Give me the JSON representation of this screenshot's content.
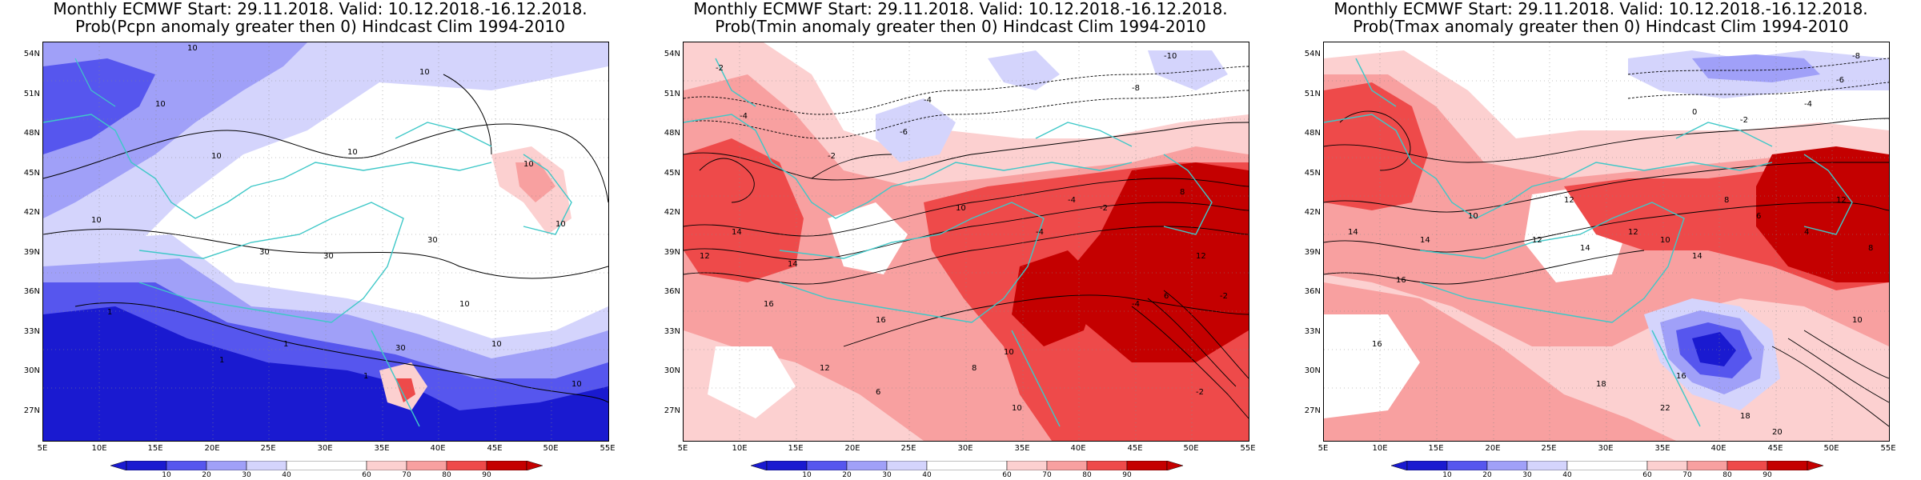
{
  "colors": {
    "blue_dark": "#1a1ad0",
    "blue_mid": "#5656ee",
    "blue_light": "#a0a0f8",
    "blue_pale": "#d4d4fc",
    "red_pale": "#fcd0d0",
    "red_light": "#f8a0a0",
    "red_mid": "#ee4a4a",
    "red_dark": "#c40000",
    "coast": "#3fc8c8",
    "contour": "#000000"
  },
  "lat_labels": [
    "54N",
    "51N",
    "48N",
    "45N",
    "42N",
    "39N",
    "36N",
    "33N",
    "30N",
    "27N"
  ],
  "lon_labels": [
    "5E",
    "10E",
    "15E",
    "20E",
    "25E",
    "30E",
    "35E",
    "40E",
    "45E",
    "50E",
    "55E"
  ],
  "colorbar_labels": [
    "10",
    "20",
    "30",
    "40",
    "60",
    "70",
    "80",
    "90"
  ],
  "panels": [
    {
      "id": "pcpn",
      "title_line1": "Monthly ECMWF Start: 29.11.2018. Valid: 10.12.2018.-16.12.2018.",
      "title_line2": "Prob(Pcpn anomaly greater then 0) Hindcast Clim 1994-2010",
      "contour_labels": [
        "10",
        "10",
        "10",
        "10",
        "10",
        "30",
        "30",
        "30",
        "10",
        "10",
        "1",
        "1",
        "10",
        "10",
        "1",
        "1",
        "30",
        "10",
        "10"
      ]
    },
    {
      "id": "tmin",
      "title_line1": "Monthly ECMWF Start: 29.11.2018. Valid: 10.12.2018.-16.12.2018.",
      "title_line2": "Prob(Tmin anomaly greater then 0) Hindcast Clim 1994-2010",
      "contour_labels": [
        "-2",
        "-10",
        "-8",
        "-4",
        "-2",
        "-4",
        "-6",
        "14",
        "12",
        "14",
        "16",
        "16",
        "10",
        "8",
        "10",
        "12",
        "-4",
        "-2",
        "-4",
        "6",
        "8",
        "12",
        "-2",
        "-4",
        "10",
        "6",
        "-2"
      ]
    },
    {
      "id": "tmax",
      "title_line1": "Monthly ECMWF Start: 29.11.2018. Valid: 10.12.2018.-16.12.2018.",
      "title_line2": "Prob(Tmax anomaly greater then 0) Hindcast Clim 1994-2010",
      "contour_labels": [
        "-8",
        "-6",
        "-4",
        "-2",
        "0",
        "14",
        "12",
        "10",
        "14",
        "16",
        "16",
        "18",
        "20",
        "22",
        "12",
        "10",
        "14",
        "8",
        "6",
        "4",
        "12",
        "8",
        "10",
        "18",
        "16",
        "14",
        "12"
      ]
    }
  ]
}
